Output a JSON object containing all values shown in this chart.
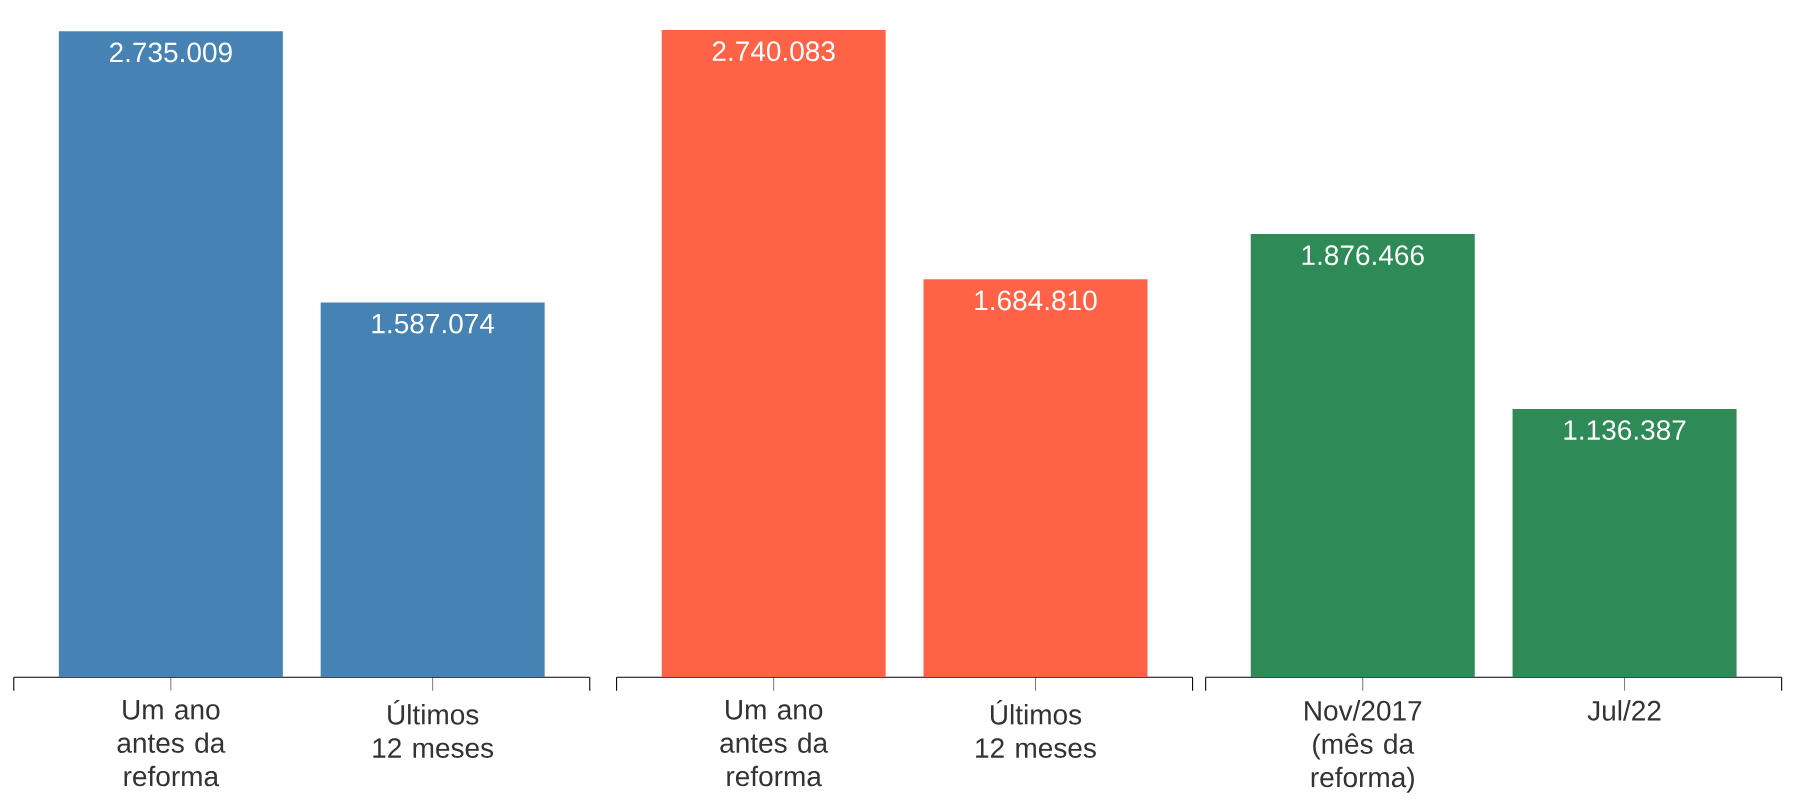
{
  "chart_data": [
    {
      "type": "bar",
      "categories": [
        "Um ano antes da reforma",
        "Últimos 12 meses"
      ],
      "values": [
        2735009,
        1587074
      ],
      "value_labels": [
        "2.735.009",
        "1.587.074"
      ],
      "color": "#4682b4",
      "tick_labels": "x"
    },
    {
      "type": "bar",
      "categories": [
        "Um ano antes da reforma",
        "Últimos 12 meses"
      ],
      "values": [
        2740083,
        1684810
      ],
      "value_labels": [
        "2.740.083",
        "1.684.810"
      ],
      "color": "#ff6347",
      "tick_labels": "x"
    },
    {
      "type": "bar",
      "categories": [
        "Nov/2017 (mês da reforma)",
        "Jul/22"
      ],
      "values": [
        1876466,
        1136387
      ],
      "value_labels": [
        "1.876.466",
        "1.136.387"
      ],
      "color": "#2e8b57",
      "tick_labels": "x"
    }
  ]
}
